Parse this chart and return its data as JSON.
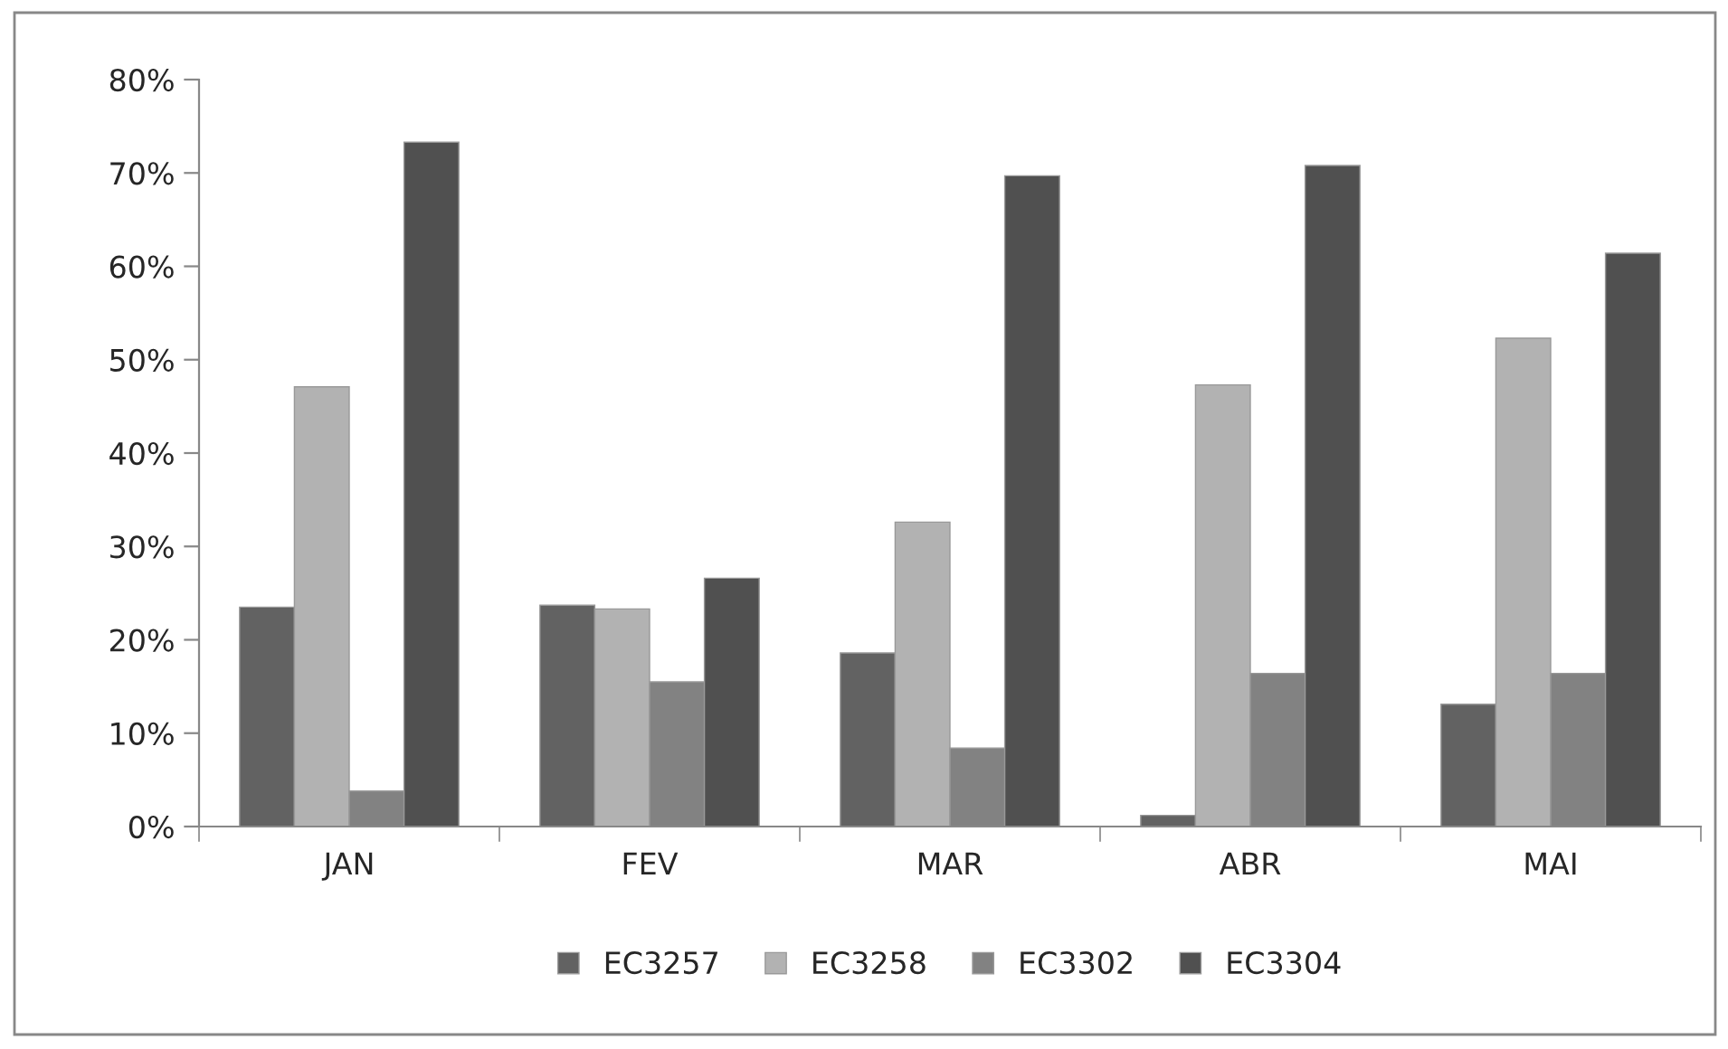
{
  "chart_data": {
    "type": "bar",
    "categories": [
      "JAN",
      "FEV",
      "MAR",
      "ABR",
      "MAI"
    ],
    "series": [
      {
        "name": "EC3257",
        "color": "#626262",
        "values": [
          23.5,
          23.7,
          18.6,
          1.2,
          13.1
        ]
      },
      {
        "name": "EC3258",
        "color": "#b2b2b2",
        "values": [
          47.1,
          23.3,
          32.6,
          47.3,
          52.3
        ]
      },
      {
        "name": "EC3302",
        "color": "#828282",
        "values": [
          3.8,
          15.5,
          8.4,
          16.4,
          16.4
        ]
      },
      {
        "name": "EC3304",
        "color": "#505050",
        "values": [
          73.3,
          26.6,
          69.7,
          70.8,
          61.4
        ]
      }
    ],
    "ylim": [
      0,
      80
    ],
    "yticks": [
      {
        "value": 0,
        "label": "0%"
      },
      {
        "value": 10,
        "label": "10%"
      },
      {
        "value": 20,
        "label": "20%"
      },
      {
        "value": 30,
        "label": "30%"
      },
      {
        "value": 40,
        "label": "40%"
      },
      {
        "value": 50,
        "label": "50%"
      },
      {
        "value": 60,
        "label": "60%"
      },
      {
        "value": 70,
        "label": "70%"
      },
      {
        "value": 80,
        "label": "80%"
      }
    ],
    "grid": false,
    "legend": "bottom"
  }
}
